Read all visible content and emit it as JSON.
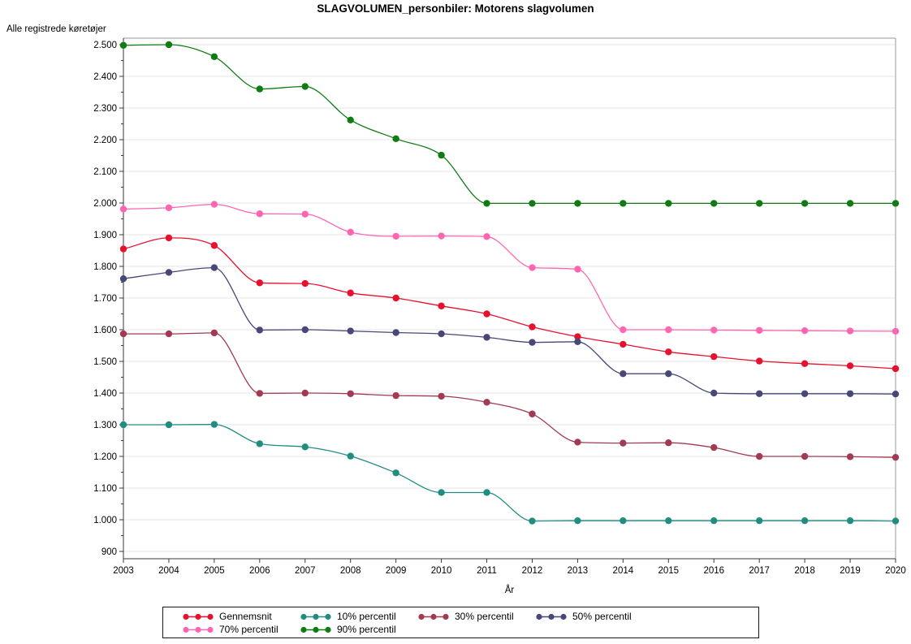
{
  "title": "SLAGVOLUMEN_personbiler: Motorens slagvolumen",
  "y_axis_label": "Alle registrede køretøjer",
  "x_axis_label": "År",
  "chart_data": {
    "type": "line",
    "x": [
      2003,
      2004,
      2005,
      2006,
      2007,
      2008,
      2009,
      2010,
      2011,
      2012,
      2013,
      2014,
      2015,
      2016,
      2017,
      2018,
      2019,
      2020
    ],
    "x_labels": [
      "2003",
      "2004",
      "2005",
      "2006",
      "2007",
      "2008",
      "2009",
      "2010",
      "2011",
      "2012",
      "2013",
      "2014",
      "2015",
      "2016",
      "2017",
      "2018",
      "2019",
      "2020"
    ],
    "series": [
      {
        "name": "Gennemsnit",
        "color": "#e8112d",
        "values": [
          1855,
          1890,
          1866,
          1748,
          1746,
          1716,
          1700,
          1675,
          1650,
          1609,
          1578,
          1554,
          1530,
          1515,
          1501,
          1493,
          1486,
          1477
        ]
      },
      {
        "name": "10% percentil",
        "color": "#218c80",
        "values": [
          1300,
          1300,
          1301,
          1240,
          1230,
          1201,
          1148,
          1086,
          1086,
          996,
          997,
          997,
          997,
          997,
          997,
          997,
          997,
          996
        ]
      },
      {
        "name": "30% percentil",
        "color": "#a13a52",
        "values": [
          1587,
          1587,
          1590,
          1399,
          1400,
          1398,
          1392,
          1390,
          1371,
          1334,
          1245,
          1242,
          1243,
          1228,
          1200,
          1200,
          1199,
          1197
        ]
      },
      {
        "name": "50% percentil",
        "color": "#474778",
        "values": [
          1761,
          1781,
          1796,
          1599,
          1600,
          1596,
          1591,
          1587,
          1576,
          1560,
          1562,
          1461,
          1461,
          1400,
          1398,
          1398,
          1398,
          1397
        ]
      },
      {
        "name": "70% percentil",
        "color": "#ff66b2",
        "values": [
          1981,
          1985,
          1996,
          1966,
          1965,
          1908,
          1895,
          1896,
          1894,
          1796,
          1791,
          1600,
          1600,
          1599,
          1598,
          1597,
          1596,
          1595
        ]
      },
      {
        "name": "90% percentil",
        "color": "#0e7c12",
        "values": [
          2498,
          2500,
          2462,
          2360,
          2368,
          2262,
          2203,
          2151,
          1999,
          1999,
          1999,
          1999,
          1999,
          1999,
          1999,
          1999,
          1999,
          1999
        ]
      }
    ],
    "ylim": [
      900,
      2500
    ],
    "y_ticks": [
      900,
      1000,
      1100,
      1200,
      1300,
      1400,
      1500,
      1600,
      1700,
      1800,
      1900,
      2000,
      2100,
      2200,
      2300,
      2400,
      2500
    ],
    "y_tick_labels": [
      "900",
      "1.000",
      "1.100",
      "1.200",
      "1.300",
      "1.400",
      "1.500",
      "1.600",
      "1.700",
      "1.800",
      "1.900",
      "2.000",
      "2.100",
      "2.200",
      "2.300",
      "2.400",
      "2.500"
    ],
    "grid": "horizontal",
    "legend_position": "bottom"
  },
  "colors": {
    "gridline": "#e4e4e4",
    "axis": "#3a3a3a",
    "frame": "#9a9a9a"
  }
}
